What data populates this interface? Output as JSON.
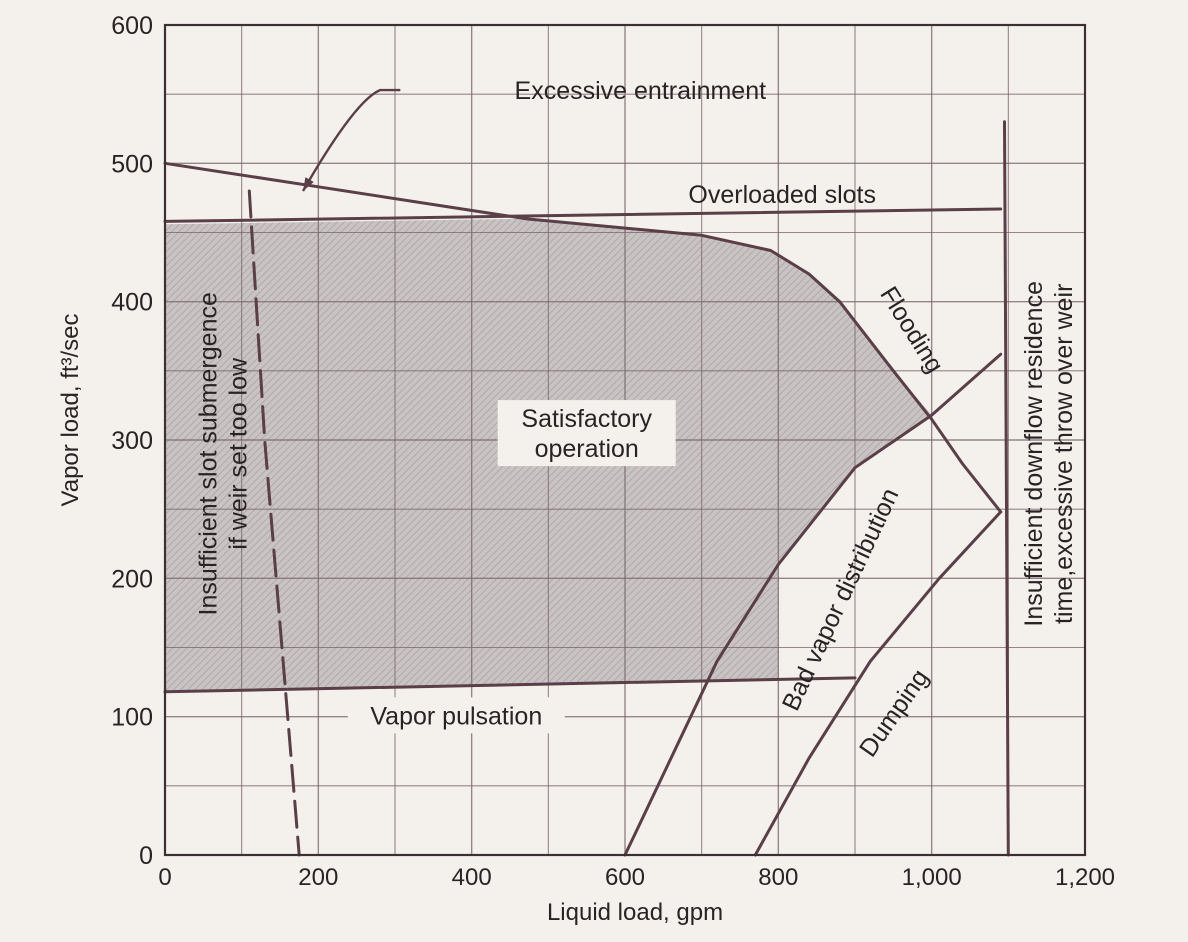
{
  "chart_data": {
    "type": "line",
    "title": "",
    "xlabel": "Liquid load, gpm",
    "ylabel": "Vapor load, ft³/sec",
    "xlim": [
      0,
      1200
    ],
    "ylim": [
      0,
      600
    ],
    "x_ticks": [
      "0",
      "200",
      "400",
      "600",
      "800",
      "1,000",
      "1,200"
    ],
    "y_ticks": [
      "0",
      "100",
      "200",
      "300",
      "400",
      "500",
      "600"
    ],
    "grid": true,
    "colors": {
      "line": "#5a3e48",
      "region": "#bdb8b7",
      "background": "#f4f1ec"
    },
    "series": [
      {
        "name": "Excessive entrainment",
        "style": "solid",
        "points": [
          [
            0,
            500
          ],
          [
            200,
            483
          ],
          [
            470,
            460
          ],
          [
            700,
            448
          ],
          [
            790,
            437
          ],
          [
            840,
            420
          ],
          [
            880,
            400
          ]
        ]
      },
      {
        "name": "Overloaded slots",
        "style": "solid",
        "points": [
          [
            0,
            458
          ],
          [
            1090,
            467
          ]
        ]
      },
      {
        "name": "Flooding",
        "style": "solid",
        "points": [
          [
            880,
            400
          ],
          [
            950,
            350
          ],
          [
            1000,
            315
          ],
          [
            1040,
            283
          ],
          [
            1090,
            248
          ]
        ]
      },
      {
        "name": "Bad vapor distribution",
        "style": "solid",
        "points": [
          [
            600,
            0
          ],
          [
            660,
            70
          ],
          [
            720,
            140
          ],
          [
            800,
            210
          ],
          [
            900,
            280
          ],
          [
            1000,
            318
          ],
          [
            1090,
            362
          ]
        ]
      },
      {
        "name": "Dumping",
        "style": "solid",
        "points": [
          [
            770,
            0
          ],
          [
            840,
            70
          ],
          [
            920,
            140
          ],
          [
            1010,
            200
          ],
          [
            1090,
            248
          ]
        ]
      },
      {
        "name": "Vapor pulsation",
        "style": "solid",
        "points": [
          [
            0,
            118
          ],
          [
            900,
            128
          ]
        ]
      },
      {
        "name": "Insufficient slot submergence if weir set too low",
        "style": "dashed",
        "points": [
          [
            110,
            480
          ],
          [
            130,
            300
          ],
          [
            160,
            100
          ],
          [
            175,
            0
          ]
        ]
      },
      {
        "name": "Insufficient downflow residence time, excessive throw over weir",
        "style": "solid",
        "points": [
          [
            1095,
            530
          ],
          [
            1100,
            0
          ]
        ]
      }
    ],
    "region": {
      "label": [
        "Satisfactory",
        "operation"
      ],
      "boundary": [
        [
          0,
          118
        ],
        [
          800,
          126
        ],
        [
          800,
          210
        ],
        [
          900,
          280
        ],
        [
          1000,
          318
        ],
        [
          950,
          350
        ],
        [
          880,
          400
        ],
        [
          840,
          420
        ],
        [
          790,
          437
        ],
        [
          700,
          448
        ],
        [
          470,
          460
        ],
        [
          0,
          456
        ]
      ]
    },
    "annotations": [
      {
        "id": "excessive-entrainment",
        "lines": [
          "Excessive entrainment"
        ],
        "x": 620,
        "y": 553,
        "rotate": 0,
        "anchor": "middle",
        "arrow_to": [
          180,
          480
        ]
      },
      {
        "id": "overloaded-slots",
        "lines": [
          "Overloaded slots"
        ],
        "x": 805,
        "y": 478,
        "rotate": 0,
        "anchor": "middle"
      },
      {
        "id": "flooding",
        "lines": [
          "Flooding"
        ],
        "x": 975,
        "y": 380,
        "rotate": 58,
        "anchor": "middle"
      },
      {
        "id": "satisfactory",
        "lines": [
          "Satisfactory",
          "operation"
        ],
        "x": 550,
        "y": 305,
        "rotate": 0,
        "anchor": "middle",
        "boxed": true
      },
      {
        "id": "bad-vapor",
        "lines": [
          "Bad vapor distribution"
        ],
        "x": 880,
        "y": 185,
        "rotate": -65,
        "anchor": "middle"
      },
      {
        "id": "dumping",
        "lines": [
          "Dumping"
        ],
        "x": 950,
        "y": 103,
        "rotate": -55,
        "anchor": "middle"
      },
      {
        "id": "vapor-pulsation",
        "lines": [
          "Vapor pulsation"
        ],
        "x": 380,
        "y": 101,
        "rotate": 0,
        "anchor": "middle",
        "line_from": [
          0,
          106
        ],
        "line_to": [
          900,
          106
        ]
      },
      {
        "id": "slot-submergence",
        "lines": [
          "Insufficient slot submergence",
          "if weir set too low"
        ],
        "x": 75,
        "y": 290,
        "rotate": -90,
        "anchor": "middle"
      },
      {
        "id": "downflow",
        "lines": [
          "Insufficient downflow residence",
          "time,excessive throw over weir"
        ],
        "x": 1152,
        "y": 290,
        "rotate": -90,
        "anchor": "middle"
      }
    ]
  }
}
